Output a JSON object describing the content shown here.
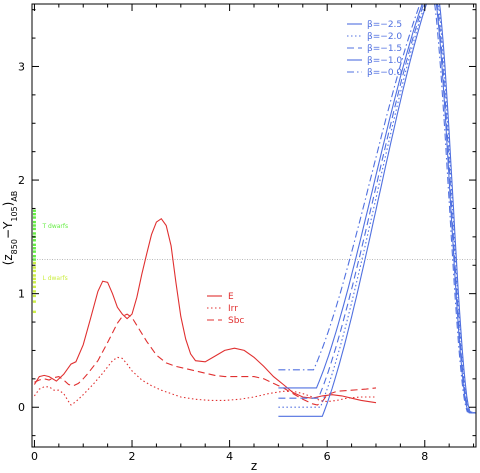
{
  "chart_data": {
    "type": "line",
    "xlabel": "z",
    "ylabel_html": "(z<tspan baseline-shift='sub' font-size='8'>850</tspan>−Y<tspan baseline-shift='sub' font-size='8'>105</tspan>)<tspan baseline-shift='sub' font-size='8'>AB</tspan>",
    "xlim": [
      -0.05,
      9.05
    ],
    "ylim": [
      -0.35,
      3.55
    ],
    "xticks": [
      0,
      2,
      4,
      6,
      8
    ],
    "yticks": [
      0,
      1,
      2,
      3
    ],
    "hline": {
      "y": 1.3,
      "color": "#b0b0b0"
    },
    "galaxy_series": [
      {
        "name": "E",
        "color": "#e03030",
        "dash": "",
        "points": [
          [
            0.0,
            0.2
          ],
          [
            0.1,
            0.27
          ],
          [
            0.2,
            0.28
          ],
          [
            0.3,
            0.27
          ],
          [
            0.45,
            0.23
          ],
          [
            0.6,
            0.29
          ],
          [
            0.75,
            0.38
          ],
          [
            0.85,
            0.4
          ],
          [
            1.0,
            0.55
          ],
          [
            1.15,
            0.78
          ],
          [
            1.3,
            1.02
          ],
          [
            1.4,
            1.11
          ],
          [
            1.5,
            1.1
          ],
          [
            1.6,
            1.0
          ],
          [
            1.7,
            0.88
          ],
          [
            1.8,
            0.82
          ],
          [
            1.9,
            0.78
          ],
          [
            2.0,
            0.82
          ],
          [
            2.1,
            0.97
          ],
          [
            2.2,
            1.17
          ],
          [
            2.3,
            1.35
          ],
          [
            2.4,
            1.52
          ],
          [
            2.5,
            1.63
          ],
          [
            2.6,
            1.66
          ],
          [
            2.7,
            1.6
          ],
          [
            2.8,
            1.42
          ],
          [
            2.9,
            1.1
          ],
          [
            3.0,
            0.8
          ],
          [
            3.1,
            0.6
          ],
          [
            3.2,
            0.47
          ],
          [
            3.3,
            0.41
          ],
          [
            3.5,
            0.4
          ],
          [
            3.7,
            0.45
          ],
          [
            3.9,
            0.5
          ],
          [
            4.1,
            0.52
          ],
          [
            4.3,
            0.5
          ],
          [
            4.5,
            0.44
          ],
          [
            4.7,
            0.36
          ],
          [
            4.9,
            0.27
          ],
          [
            5.1,
            0.2
          ],
          [
            5.3,
            0.13
          ],
          [
            5.5,
            0.09
          ],
          [
            5.7,
            0.08
          ],
          [
            5.9,
            0.1
          ],
          [
            6.1,
            0.11
          ],
          [
            6.3,
            0.1
          ],
          [
            6.5,
            0.08
          ],
          [
            6.7,
            0.06
          ],
          [
            7.0,
            0.04
          ]
        ]
      },
      {
        "name": "Irr",
        "color": "#e03030",
        "dash": "1.5,2.5",
        "points": [
          [
            0.0,
            0.1
          ],
          [
            0.1,
            0.16
          ],
          [
            0.2,
            0.18
          ],
          [
            0.3,
            0.18
          ],
          [
            0.4,
            0.15
          ],
          [
            0.5,
            0.15
          ],
          [
            0.6,
            0.12
          ],
          [
            0.7,
            0.05
          ],
          [
            0.75,
            0.02
          ],
          [
            0.85,
            0.05
          ],
          [
            1.0,
            0.11
          ],
          [
            1.2,
            0.2
          ],
          [
            1.4,
            0.3
          ],
          [
            1.6,
            0.41
          ],
          [
            1.7,
            0.44
          ],
          [
            1.8,
            0.43
          ],
          [
            1.9,
            0.38
          ],
          [
            2.0,
            0.32
          ],
          [
            2.2,
            0.24
          ],
          [
            2.4,
            0.19
          ],
          [
            2.6,
            0.15
          ],
          [
            2.8,
            0.12
          ],
          [
            3.0,
            0.09
          ],
          [
            3.3,
            0.07
          ],
          [
            3.6,
            0.06
          ],
          [
            3.9,
            0.06
          ],
          [
            4.2,
            0.07
          ],
          [
            4.5,
            0.09
          ],
          [
            4.8,
            0.12
          ],
          [
            5.1,
            0.14
          ],
          [
            5.3,
            0.14
          ],
          [
            5.5,
            0.12
          ],
          [
            5.7,
            0.09
          ],
          [
            5.85,
            0.06
          ],
          [
            6.0,
            0.05
          ],
          [
            6.2,
            0.06
          ],
          [
            6.4,
            0.08
          ],
          [
            6.7,
            0.09
          ],
          [
            7.0,
            0.09
          ]
        ]
      },
      {
        "name": "Sbc",
        "color": "#e03030",
        "dash": "7,4",
        "points": [
          [
            0.0,
            0.22
          ],
          [
            0.1,
            0.24
          ],
          [
            0.2,
            0.25
          ],
          [
            0.3,
            0.24
          ],
          [
            0.4,
            0.26
          ],
          [
            0.5,
            0.27
          ],
          [
            0.6,
            0.24
          ],
          [
            0.7,
            0.2
          ],
          [
            0.8,
            0.19
          ],
          [
            0.9,
            0.21
          ],
          [
            1.0,
            0.25
          ],
          [
            1.1,
            0.3
          ],
          [
            1.3,
            0.41
          ],
          [
            1.5,
            0.57
          ],
          [
            1.7,
            0.74
          ],
          [
            1.8,
            0.8
          ],
          [
            1.9,
            0.82
          ],
          [
            2.0,
            0.79
          ],
          [
            2.1,
            0.72
          ],
          [
            2.3,
            0.58
          ],
          [
            2.5,
            0.46
          ],
          [
            2.7,
            0.39
          ],
          [
            2.9,
            0.36
          ],
          [
            3.1,
            0.34
          ],
          [
            3.3,
            0.32
          ],
          [
            3.5,
            0.3
          ],
          [
            3.7,
            0.28
          ],
          [
            3.9,
            0.27
          ],
          [
            4.1,
            0.27
          ],
          [
            4.3,
            0.27
          ],
          [
            4.5,
            0.27
          ],
          [
            4.7,
            0.25
          ],
          [
            4.9,
            0.21
          ],
          [
            5.1,
            0.17
          ],
          [
            5.3,
            0.12
          ],
          [
            5.5,
            0.07
          ],
          [
            5.7,
            0.03
          ],
          [
            5.8,
            0.02
          ],
          [
            5.9,
            0.05
          ],
          [
            6.0,
            0.11
          ],
          [
            6.2,
            0.14
          ],
          [
            6.5,
            0.15
          ],
          [
            6.8,
            0.16
          ],
          [
            7.0,
            0.17
          ]
        ]
      }
    ],
    "beta_series": [
      {
        "name": "β=−2.5",
        "color": "#5070e0",
        "dash": "",
        "flat": -0.08,
        "shift": 0.0
      },
      {
        "name": "β=−2.0",
        "color": "#5070e0",
        "dash": "1.5,2.5",
        "flat": 0.0,
        "shift": -0.04
      },
      {
        "name": "β=−1.5",
        "color": "#5070e0",
        "dash": "7,4",
        "flat": 0.08,
        "shift": -0.08
      },
      {
        "name": "β=−1.0",
        "color": "#5070e0",
        "dash": "",
        "flat": 0.17,
        "shift": -0.12
      },
      {
        "name": "β=−0.0",
        "color": "#5070e0",
        "dash": "7,3,1.5,3",
        "flat": 0.33,
        "shift": -0.18
      }
    ],
    "galaxy_legend": [
      {
        "label": "E",
        "color": "#e03030",
        "dash": ""
      },
      {
        "label": "Irr",
        "color": "#e03030",
        "dash": "1.5,2.5"
      },
      {
        "label": "Sbc",
        "color": "#e03030",
        "dash": "7,4"
      }
    ],
    "beta_legend": [
      {
        "label": "β=−2.5",
        "color": "#5070e0",
        "dash": ""
      },
      {
        "label": "β=−2.0",
        "color": "#5070e0",
        "dash": "1.5,2.5"
      },
      {
        "label": "β=−1.5",
        "color": "#5070e0",
        "dash": "7,4"
      },
      {
        "label": "β=−1.0",
        "color": "#5070e0",
        "dash": ""
      },
      {
        "label": "β=−0.0",
        "color": "#5070e0",
        "dash": "7,3,1.5,3"
      }
    ],
    "dwarfs": {
      "T_dwarfs": {
        "label": "T dwarfs",
        "color": "#66ee44",
        "values": [
          1.73,
          1.7,
          1.67,
          1.63,
          1.6,
          1.57,
          1.53,
          1.5,
          1.47,
          1.43,
          1.4,
          1.37,
          1.33,
          1.3
        ]
      },
      "L_dwarfs": {
        "label": "L dwarfs",
        "color": "#ccee44",
        "values": [
          1.27,
          1.23,
          1.2,
          1.16,
          1.13,
          1.1,
          1.06,
          1.02,
          0.98,
          0.93,
          0.84
        ]
      }
    }
  }
}
